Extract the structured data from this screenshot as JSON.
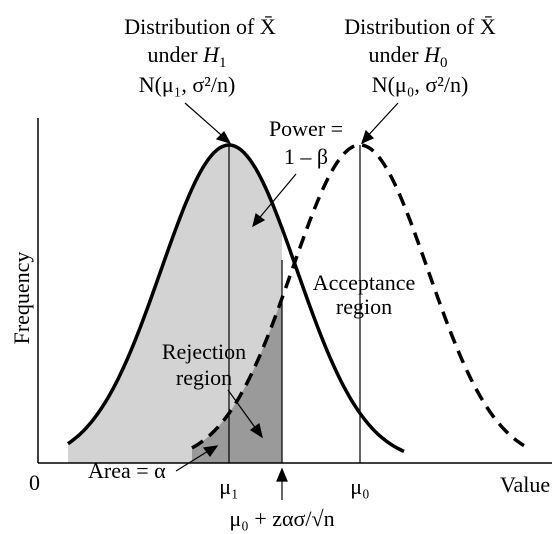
{
  "labels": {
    "h1_title_line1": "Distribution of X̄",
    "h1_title_line2_prefix": "under ",
    "h1_hyp": "H",
    "h1_sub": "1",
    "h1_formula": "N(μ₁, σ²/n)",
    "h0_title_line1": "Distribution of X̄",
    "h0_title_line2_prefix": "under ",
    "h0_hyp": "H",
    "h0_sub": "0",
    "h0_formula": "N(μ₀, σ²/n)",
    "power_line1": "Power =",
    "power_line2": "1 – β",
    "acceptance_line1": "Acceptance",
    "acceptance_line2": "region",
    "rejection_line1": "Rejection",
    "rejection_line2": "region",
    "area_alpha": "Area = α",
    "critical_value": "μ₀ + zασ/√n",
    "ylabel": "Frequency",
    "xlabel": "Value",
    "origin": "0",
    "mu1": "μ₁",
    "mu0": "μ₀"
  },
  "colors": {
    "stroke": "#000000",
    "power_fill": "#d3d3d3",
    "alpha_fill": "#9a9a9a"
  }
}
